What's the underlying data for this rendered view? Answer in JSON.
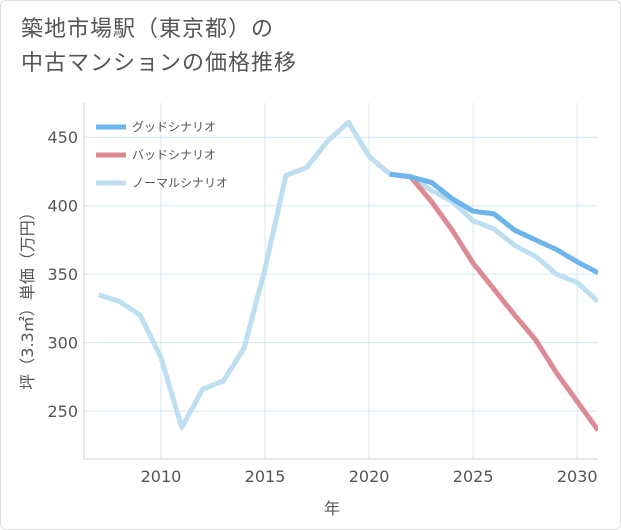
{
  "title": {
    "line1": "築地市場駅（東京都）の",
    "line2": "中古マンションの価格推移"
  },
  "colors": {
    "good": "#6cb4ea",
    "bad": "#dc8a93",
    "normal": "#bddff0",
    "grid": "#d6e7f0",
    "axis_text": "#555555"
  },
  "chart_data": {
    "type": "line",
    "title": "築地市場駅（東京都）の中古マンションの価格推移",
    "xlabel": "年",
    "ylabel": "坪（3.3㎡）単価（万円）",
    "xlim": [
      2006.3,
      2031
    ],
    "ylim": [
      215,
      475
    ],
    "x_ticks": [
      2010,
      2015,
      2020,
      2025,
      2030
    ],
    "y_ticks": [
      250,
      300,
      350,
      400,
      450
    ],
    "grid": true,
    "legend_position": "top-left",
    "series": [
      {
        "name": "グッドシナリオ",
        "color": "#6cb4ea",
        "x": [
          2021,
          2022,
          2023,
          2024,
          2025,
          2026,
          2027,
          2028,
          2029,
          2030,
          2031
        ],
        "y": [
          423,
          421,
          417,
          405,
          396,
          394,
          382,
          375,
          368,
          359,
          351
        ]
      },
      {
        "name": "バッドシナリオ",
        "color": "#dc8a93",
        "x": [
          2021,
          2022,
          2023,
          2024,
          2025,
          2026,
          2027,
          2028,
          2029,
          2030,
          2031
        ],
        "y": [
          423,
          421,
          403,
          382,
          358,
          339,
          320,
          302,
          278,
          257,
          236
        ]
      },
      {
        "name": "ノーマルシナリオ",
        "color": "#bddff0",
        "x": [
          2007,
          2008,
          2009,
          2010,
          2011,
          2012,
          2013,
          2014,
          2015,
          2016,
          2017,
          2018,
          2019,
          2020,
          2021,
          2022,
          2023,
          2024,
          2025,
          2026,
          2027,
          2028,
          2029,
          2030,
          2031
        ],
        "y": [
          335,
          330,
          320,
          289,
          238,
          266,
          272,
          296,
          354,
          422,
          428,
          447,
          461,
          436,
          423,
          421,
          411,
          403,
          389,
          383,
          371,
          363,
          350,
          344,
          330
        ]
      }
    ]
  }
}
